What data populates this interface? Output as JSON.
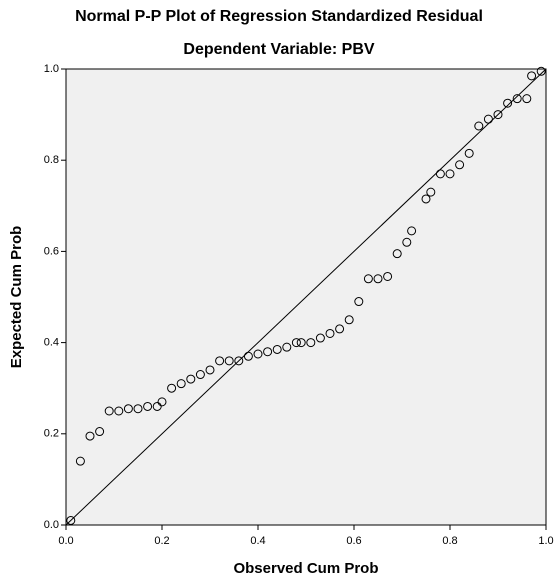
{
  "chart_data": {
    "type": "scatter",
    "title": "Normal P-P Plot of Regression Standardized Residual",
    "subtitle": "Dependent Variable: PBV",
    "x_label": "Observed Cum Prob",
    "y_label": "Expected Cum Prob",
    "xlim": [
      0,
      1
    ],
    "ylim": [
      0,
      1
    ],
    "xticks": [
      {
        "value": 0,
        "label": "0.0"
      },
      0.2,
      0.4,
      0.6,
      0.8,
      {
        "value": 1,
        "label": "1.0"
      }
    ],
    "yticks": [
      {
        "value": 0,
        "label": "0.0"
      },
      0.2,
      0.4,
      0.6,
      0.8,
      {
        "value": 1,
        "label": "1.0"
      }
    ],
    "color": "#000000",
    "background": "#f0f0f0",
    "reference_line": true,
    "x": [
      0.01,
      0.03,
      0.05,
      0.07,
      0.09,
      0.11,
      0.13,
      0.15,
      0.17,
      0.19,
      0.2,
      0.22,
      0.24,
      0.26,
      0.28,
      0.3,
      0.32,
      0.34,
      0.36,
      0.38,
      0.4,
      0.42,
      0.44,
      0.46,
      0.48,
      0.49,
      0.51,
      0.53,
      0.55,
      0.57,
      0.59,
      0.61,
      0.63,
      0.65,
      0.67,
      0.69,
      0.71,
      0.72,
      0.75,
      0.76,
      0.78,
      0.8,
      0.82,
      0.84,
      0.86,
      0.88,
      0.9,
      0.92,
      0.94,
      0.96,
      0.97,
      0.99
    ],
    "values": [
      0.01,
      0.14,
      0.195,
      0.205,
      0.25,
      0.25,
      0.255,
      0.255,
      0.26,
      0.26,
      0.27,
      0.3,
      0.31,
      0.32,
      0.33,
      0.34,
      0.36,
      0.36,
      0.36,
      0.37,
      0.375,
      0.38,
      0.385,
      0.39,
      0.4,
      0.4,
      0.4,
      0.41,
      0.42,
      0.43,
      0.45,
      0.49,
      0.54,
      0.54,
      0.545,
      0.595,
      0.62,
      0.645,
      0.715,
      0.73,
      0.77,
      0.77,
      0.79,
      0.815,
      0.875,
      0.89,
      0.9,
      0.925,
      0.935,
      0.935,
      0.985,
      0.995
    ]
  }
}
